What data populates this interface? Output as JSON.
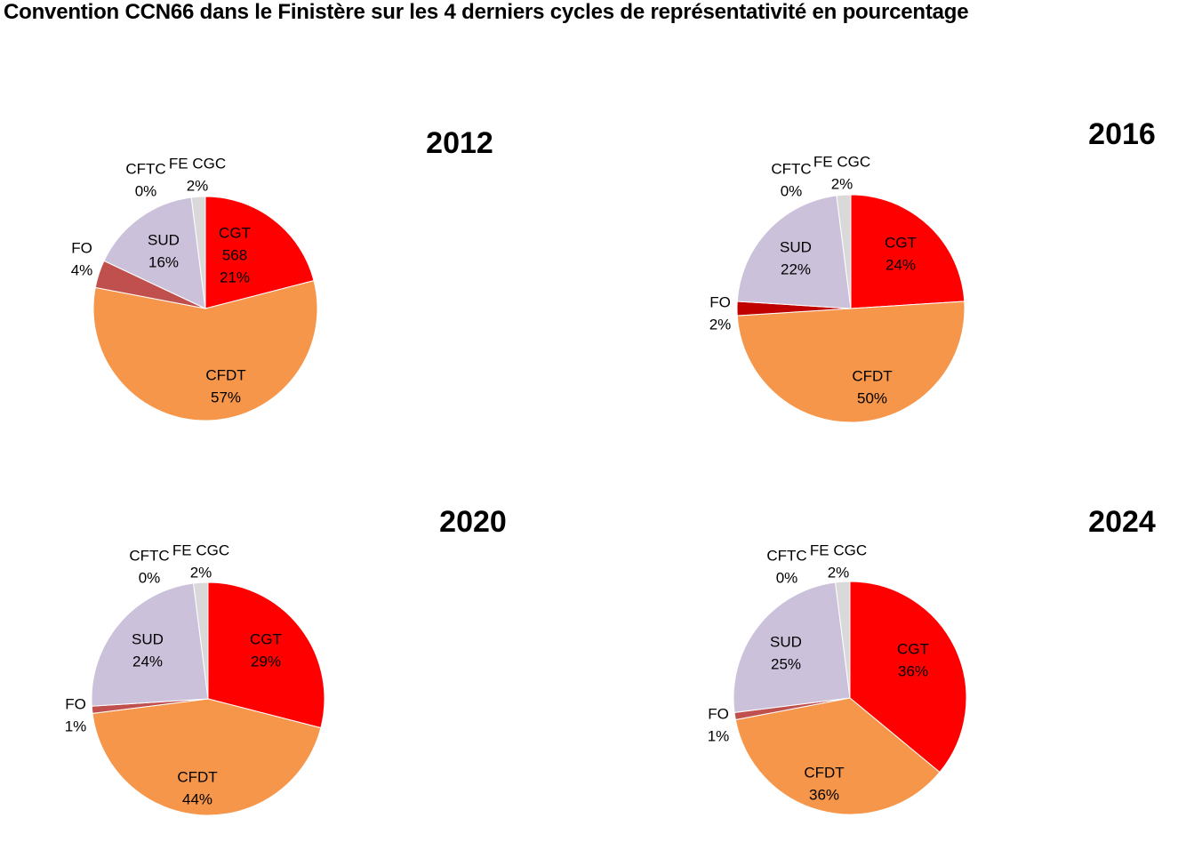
{
  "title": "Convention CCN66 dans le Finistère sur les 4 derniers cycles de représentativité en pourcentage",
  "colors": {
    "CGT": "#ff0000",
    "CFDT": "#f5964a",
    "SUD": "#ccc1da",
    "FO_2012": "#c0504d",
    "FO_2016": "#c00000",
    "FO_2020": "#c0504d",
    "FO_2024": "#c0504d",
    "CFTC": "#b0b0b0",
    "FE CGC": "#d9d9d9"
  },
  "chart_data": [
    {
      "type": "pie",
      "title": "2012",
      "slices": [
        {
          "label": "CGT",
          "value": 21,
          "extra": "568",
          "pct": "21%"
        },
        {
          "label": "CFDT",
          "value": 57,
          "pct": "57%"
        },
        {
          "label": "FO",
          "value": 4,
          "pct": "4%"
        },
        {
          "label": "SUD",
          "value": 16,
          "pct": "16%"
        },
        {
          "label": "CFTC",
          "value": 0,
          "pct": "0%"
        },
        {
          "label": "FE CGC",
          "value": 2,
          "pct": "2%"
        }
      ]
    },
    {
      "type": "pie",
      "title": "2016",
      "slices": [
        {
          "label": "CGT",
          "value": 24,
          "pct": "24%"
        },
        {
          "label": "CFDT",
          "value": 50,
          "pct": "50%"
        },
        {
          "label": "FO",
          "value": 2,
          "pct": "2%"
        },
        {
          "label": "SUD",
          "value": 22,
          "pct": "22%"
        },
        {
          "label": "CFTC",
          "value": 0,
          "pct": "0%"
        },
        {
          "label": "FE CGC",
          "value": 2,
          "pct": "2%"
        }
      ]
    },
    {
      "type": "pie",
      "title": "2020",
      "slices": [
        {
          "label": "CGT",
          "value": 29,
          "pct": "29%"
        },
        {
          "label": "CFDT",
          "value": 44,
          "pct": "44%"
        },
        {
          "label": "FO",
          "value": 1,
          "pct": "1%"
        },
        {
          "label": "SUD",
          "value": 24,
          "pct": "24%"
        },
        {
          "label": "CFTC",
          "value": 0,
          "pct": "0%"
        },
        {
          "label": "FE CGC",
          "value": 2,
          "pct": "2%"
        }
      ]
    },
    {
      "type": "pie",
      "title": "2024",
      "slices": [
        {
          "label": "CGT",
          "value": 36,
          "pct": "36%"
        },
        {
          "label": "CFDT",
          "value": 36,
          "pct": "36%"
        },
        {
          "label": "FO",
          "value": 1,
          "pct": "1%"
        },
        {
          "label": "SUD",
          "value": 25,
          "pct": "25%"
        },
        {
          "label": "CFTC",
          "value": 0,
          "pct": "0%"
        },
        {
          "label": "FE CGC",
          "value": 2,
          "pct": "2%"
        }
      ]
    }
  ]
}
